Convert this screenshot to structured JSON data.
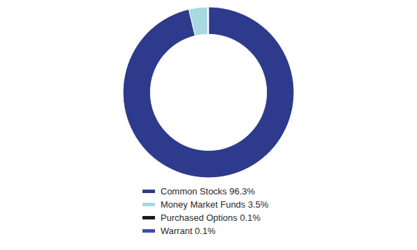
{
  "chart_data": {
    "type": "pie",
    "categories": [
      "Common Stocks 96.3%",
      "Money Market Funds 3.5%",
      "Purchased Options 0.1%",
      "Warrant 0.1%"
    ],
    "values": [
      96.3,
      3.5,
      0.1,
      0.1
    ],
    "colors": [
      "#2e3a8c",
      "#a8d8e0",
      "#1a1a1a",
      "#3a4db5"
    ],
    "legend": "bottom"
  }
}
